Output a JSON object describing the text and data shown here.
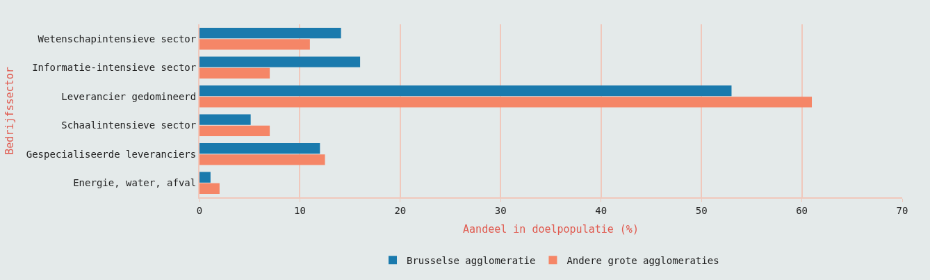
{
  "chart_data": {
    "type": "bar",
    "orientation": "horizontal",
    "categories": [
      "Wetenschapintensieve sector",
      "Informatie-intensieve sector",
      "Leverancier gedomineerd",
      "Schaalintensieve sector",
      "Gespecialiseerde leveranciers",
      "Energie, water, afval"
    ],
    "series": [
      {
        "name": "Brusselse agglomeratie",
        "color": "#1a7aad",
        "values": [
          14.1,
          16.0,
          53.0,
          5.1,
          12.0,
          1.1
        ]
      },
      {
        "name": "Andere grote agglomeraties",
        "color": "#f58667",
        "values": [
          11.0,
          7.0,
          61.0,
          7.0,
          12.5,
          2.0
        ]
      }
    ],
    "xlim": [
      0,
      70
    ],
    "xticks": [
      0,
      10,
      20,
      30,
      40,
      50,
      60,
      70
    ],
    "xlabel": "Aandeel in doelpopulatie (%)",
    "ylabel": "Bedrijfssector",
    "grid": "x",
    "legend": "bottom"
  }
}
